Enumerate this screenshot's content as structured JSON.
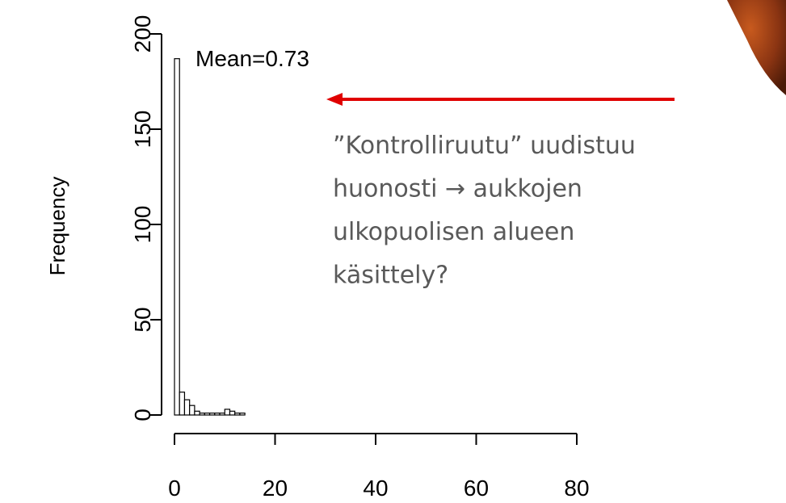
{
  "chart_data": {
    "type": "histogram",
    "ylabel": "Frequency",
    "annotation": "Mean=0.73",
    "bins": [
      0,
      1,
      2,
      3,
      4,
      5,
      6,
      7,
      8,
      9,
      10,
      11,
      12,
      13,
      14
    ],
    "counts": [
      187,
      12,
      8,
      5,
      2,
      1,
      1,
      1,
      1,
      1,
      3,
      2,
      1,
      1
    ],
    "color": "#ffffff",
    "xlim": [
      0,
      80
    ],
    "xticks": [
      0,
      20,
      40,
      60,
      80
    ],
    "ylim": [
      0,
      200
    ],
    "yticks": [
      0,
      50,
      100,
      150,
      200
    ]
  },
  "callout": {
    "lines": [
      "”Kontrolliruutu” uudistuu",
      "huonosti → aukkojen",
      "ulkopuolisen alueen",
      "käsittely?"
    ],
    "arrow_color": "#e00000"
  }
}
